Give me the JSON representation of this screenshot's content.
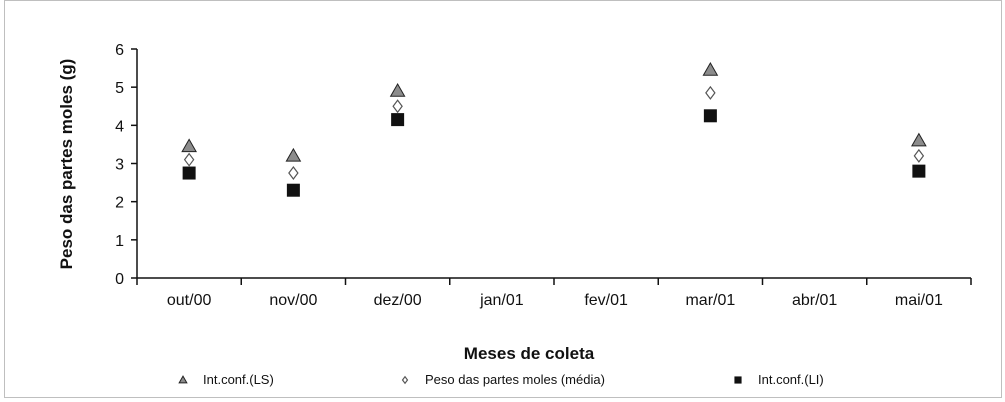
{
  "chart_data": {
    "type": "scatter",
    "title": "",
    "xlabel": "Meses de coleta",
    "ylabel": "Peso das partes moles (g)",
    "categories": [
      "out/00",
      "nov/00",
      "dez/00",
      "jan/01",
      "fev/01",
      "mar/01",
      "abr/01",
      "mai/01"
    ],
    "ylim": [
      0,
      6
    ],
    "yticks": [
      0,
      1,
      2,
      3,
      4,
      5,
      6
    ],
    "grid": false,
    "legend_position": "bottom",
    "series": [
      {
        "name": "Int.conf.(LS)",
        "marker": "triangle",
        "color": "#8c8c8c",
        "values": [
          3.45,
          3.2,
          4.9,
          null,
          null,
          5.45,
          null,
          3.6
        ]
      },
      {
        "name": "Peso das partes moles (média)",
        "marker": "diamond-open",
        "color": "#ffffff",
        "values": [
          3.1,
          2.75,
          4.5,
          null,
          null,
          4.85,
          null,
          3.2
        ]
      },
      {
        "name": "Int.conf.(LI)",
        "marker": "square",
        "color": "#111111",
        "values": [
          2.75,
          2.3,
          4.15,
          null,
          null,
          4.25,
          null,
          2.8
        ]
      }
    ]
  }
}
